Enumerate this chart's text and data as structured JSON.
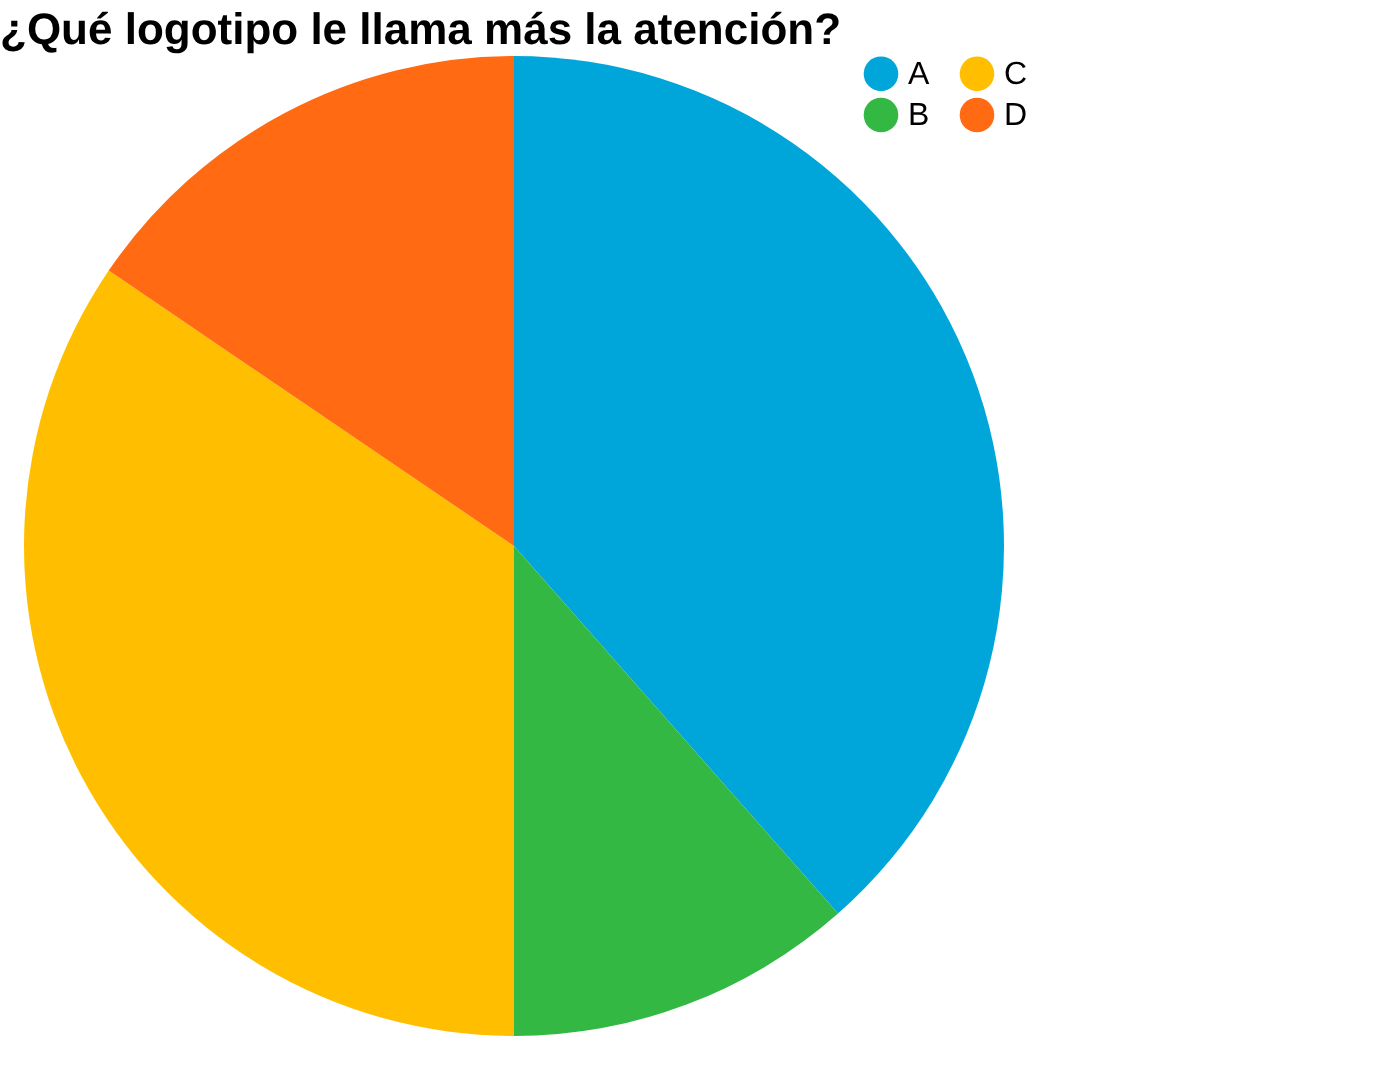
{
  "chart_data": {
    "type": "pie",
    "title": "¿Qué logotipo le llama más la atención?",
    "categories": [
      "A",
      "B",
      "C",
      "D"
    ],
    "values": [
      38.5,
      11.5,
      34.5,
      15.5
    ],
    "colors": [
      "#00a6d9",
      "#33b844",
      "#ffbf00",
      "#ff6a13"
    ],
    "legend": "top right"
  }
}
